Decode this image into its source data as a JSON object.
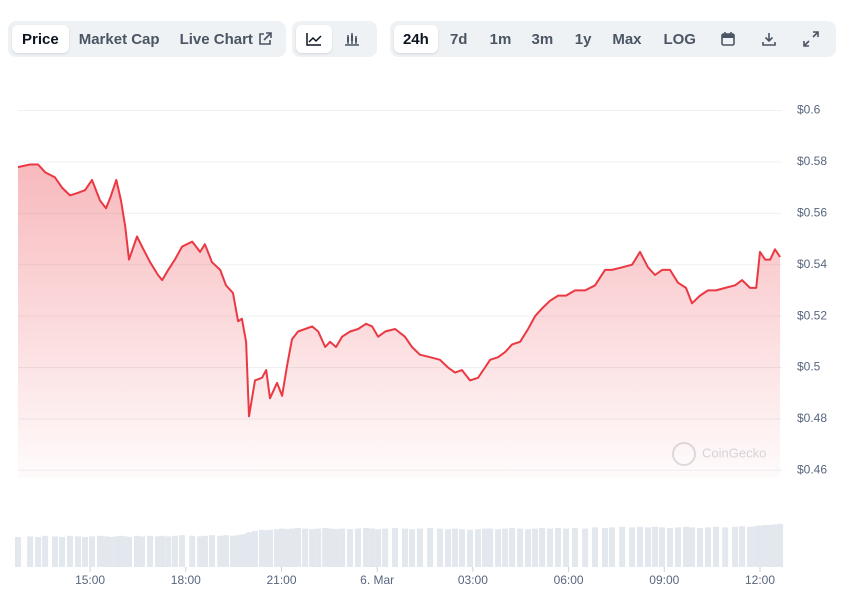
{
  "toolbar": {
    "views": [
      "Price",
      "Market Cap",
      "Live Chart"
    ],
    "ranges": [
      "24h",
      "7d",
      "1m",
      "3m",
      "1y",
      "Max",
      "LOG"
    ]
  },
  "watermark": "CoinGecko",
  "chart_data": {
    "type": "line",
    "x": [
      12.74,
      13.12,
      13.37,
      13.59,
      13.9,
      14.12,
      14.37,
      14.62,
      14.84,
      15.06,
      15.31,
      15.5,
      15.63,
      15.82,
      15.97,
      16.1,
      16.22,
      16.47,
      16.63,
      16.88,
      17.13,
      17.26,
      17.45,
      17.66,
      17.88,
      18.2,
      18.45,
      18.6,
      18.82,
      19.08,
      19.26,
      19.48,
      19.64,
      19.76,
      19.89,
      19.98,
      20.17,
      20.39,
      20.52,
      20.64,
      20.86,
      21.02,
      21.18,
      21.33,
      21.52,
      21.74,
      21.96,
      22.15,
      22.37,
      22.52,
      22.71,
      22.9,
      23.15,
      23.4,
      23.65,
      23.84,
      24.03,
      24.25,
      24.56,
      24.87,
      25.09,
      25.34,
      25.66,
      25.97,
      26.22,
      26.44,
      26.66,
      26.91,
      27.16,
      27.38,
      27.54,
      27.79,
      28.01,
      28.23,
      28.48,
      28.73,
      28.95,
      29.17,
      29.42,
      29.67,
      29.92,
      30.2,
      30.52,
      30.83,
      31.14,
      31.36,
      31.68,
      31.99,
      32.24,
      32.49,
      32.71,
      32.93,
      33.18,
      33.43,
      33.68,
      33.87,
      34.12,
      34.37,
      34.62,
      34.91,
      35.22,
      35.44,
      35.69,
      35.88,
      36.0,
      36.16,
      36.32,
      36.47,
      36.63
    ],
    "series": [
      {
        "color": "#ea3943",
        "values": [
          0.578,
          0.579,
          0.579,
          0.576,
          0.574,
          0.57,
          0.567,
          0.568,
          0.569,
          0.573,
          0.565,
          0.562,
          0.566,
          0.573,
          0.565,
          0.555,
          0.542,
          0.551,
          0.547,
          0.541,
          0.536,
          0.534,
          0.538,
          0.542,
          0.547,
          0.549,
          0.545,
          0.548,
          0.541,
          0.538,
          0.532,
          0.529,
          0.518,
          0.519,
          0.51,
          0.481,
          0.495,
          0.496,
          0.499,
          0.488,
          0.494,
          0.489,
          0.501,
          0.511,
          0.514,
          0.515,
          0.516,
          0.514,
          0.508,
          0.51,
          0.508,
          0.512,
          0.514,
          0.515,
          0.517,
          0.516,
          0.512,
          0.514,
          0.515,
          0.512,
          0.508,
          0.505,
          0.504,
          0.503,
          0.5,
          0.498,
          0.499,
          0.495,
          0.496,
          0.5,
          0.503,
          0.504,
          0.506,
          0.509,
          0.51,
          0.515,
          0.52,
          0.523,
          0.526,
          0.528,
          0.528,
          0.53,
          0.53,
          0.532,
          0.538,
          0.538,
          0.539,
          0.54,
          0.545,
          0.539,
          0.536,
          0.538,
          0.538,
          0.533,
          0.531,
          0.525,
          0.528,
          0.53,
          0.53,
          0.531,
          0.532,
          0.534,
          0.531,
          0.531,
          0.545,
          0.542,
          0.542,
          0.546,
          0.543
        ]
      },
      {
        "axis": "y2",
        "color": "#e3e7ee",
        "values": [
          50,
          51,
          50,
          52,
          51,
          50,
          52,
          51,
          50,
          51,
          52,
          51,
          50,
          51,
          52,
          51,
          50,
          52,
          51,
          52,
          51,
          52,
          51,
          52,
          53,
          52,
          51,
          52,
          53,
          52,
          53,
          52,
          53,
          54,
          55,
          58,
          60,
          62,
          61,
          62,
          63,
          64,
          63,
          64,
          65,
          64,
          63,
          64,
          65,
          64,
          63,
          64,
          63,
          64,
          65,
          64,
          63,
          64,
          65,
          64,
          63,
          64,
          65,
          64,
          63,
          64,
          63,
          62,
          63,
          64,
          64,
          63,
          64,
          65,
          64,
          63,
          64,
          65,
          64,
          65,
          64,
          65,
          64,
          66,
          65,
          66,
          67,
          66,
          67,
          66,
          67,
          66,
          65,
          66,
          67,
          66,
          65,
          66,
          67,
          66,
          67,
          68,
          67,
          68,
          69,
          70,
          70,
          71,
          72
        ]
      }
    ],
    "xlim": [
      12.74,
      36.69
    ],
    "xticks": [
      {
        "value": 15,
        "label": "15:00"
      },
      {
        "value": 18,
        "label": "18:00"
      },
      {
        "value": 21,
        "label": "21:00"
      },
      {
        "value": 24,
        "label": "6. Mar"
      },
      {
        "value": 27,
        "label": "03:00"
      },
      {
        "value": 30,
        "label": "06:00"
      },
      {
        "value": 33,
        "label": "09:00"
      },
      {
        "value": 36,
        "label": "12:00"
      }
    ],
    "ylim": [
      0.457,
      0.608
    ],
    "yticks": [
      {
        "value": 0.46,
        "label": "$0.46"
      },
      {
        "value": 0.48,
        "label": "$0.48"
      },
      {
        "value": 0.5,
        "label": "$0.5"
      },
      {
        "value": 0.52,
        "label": "$0.52"
      },
      {
        "value": 0.54,
        "label": "$0.54"
      },
      {
        "value": 0.56,
        "label": "$0.56"
      },
      {
        "value": 0.58,
        "label": "$0.58"
      },
      {
        "value": 0.6,
        "label": "$0.6"
      }
    ],
    "y2lim": [
      0,
      100
    ],
    "grid": true
  }
}
